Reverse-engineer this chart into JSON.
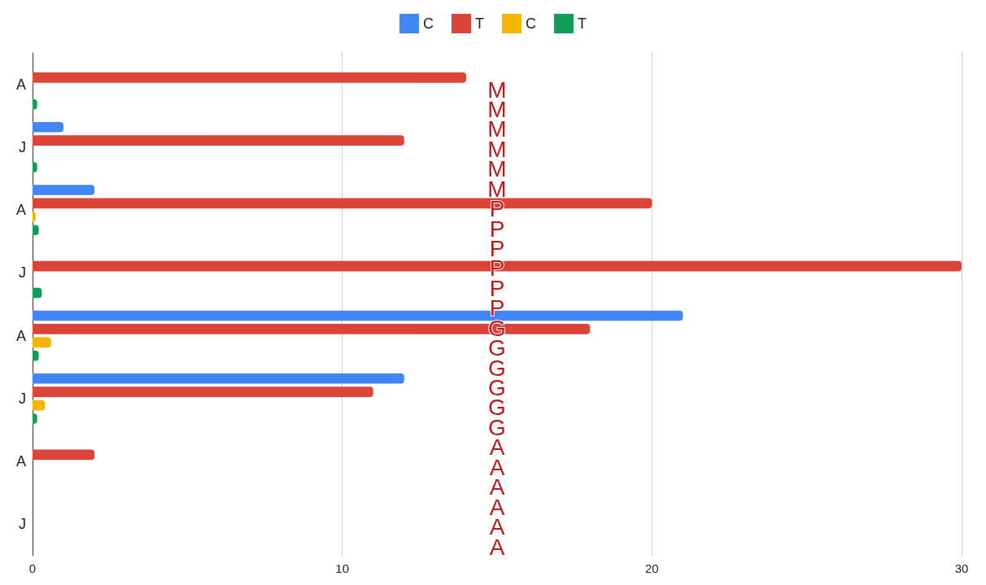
{
  "chart_data": {
    "type": "bar",
    "orientation": "horizontal",
    "categories": [
      "A",
      "J",
      "A",
      "J",
      "A",
      "J",
      "A",
      "J"
    ],
    "series": [
      {
        "name": "C",
        "color": "#4285f4",
        "values": [
          0,
          1,
          2,
          0,
          21,
          12,
          0,
          0
        ]
      },
      {
        "name": "T",
        "color": "#db4437",
        "values": [
          14,
          12,
          20,
          30,
          18,
          11,
          2,
          0
        ]
      },
      {
        "name": "C",
        "color": "#f4b400",
        "values": [
          0,
          0,
          0.1,
          0,
          0.6,
          0.4,
          0,
          0
        ]
      },
      {
        "name": "T",
        "color": "#0f9d58",
        "values": [
          0.15,
          0.15,
          0.2,
          0.3,
          0.2,
          0.15,
          0,
          0
        ]
      }
    ],
    "xlim": [
      0,
      30
    ],
    "xticks": [
      0,
      10,
      20,
      30
    ],
    "grid": "x",
    "legend": "top",
    "annotations": [
      "M",
      "M",
      "M",
      "M",
      "M",
      "M",
      "P",
      "P",
      "P",
      "P",
      "P",
      "P",
      "G",
      "G",
      "G",
      "G",
      "G",
      "G",
      "A",
      "A",
      "A",
      "A",
      "A",
      "A"
    ]
  }
}
